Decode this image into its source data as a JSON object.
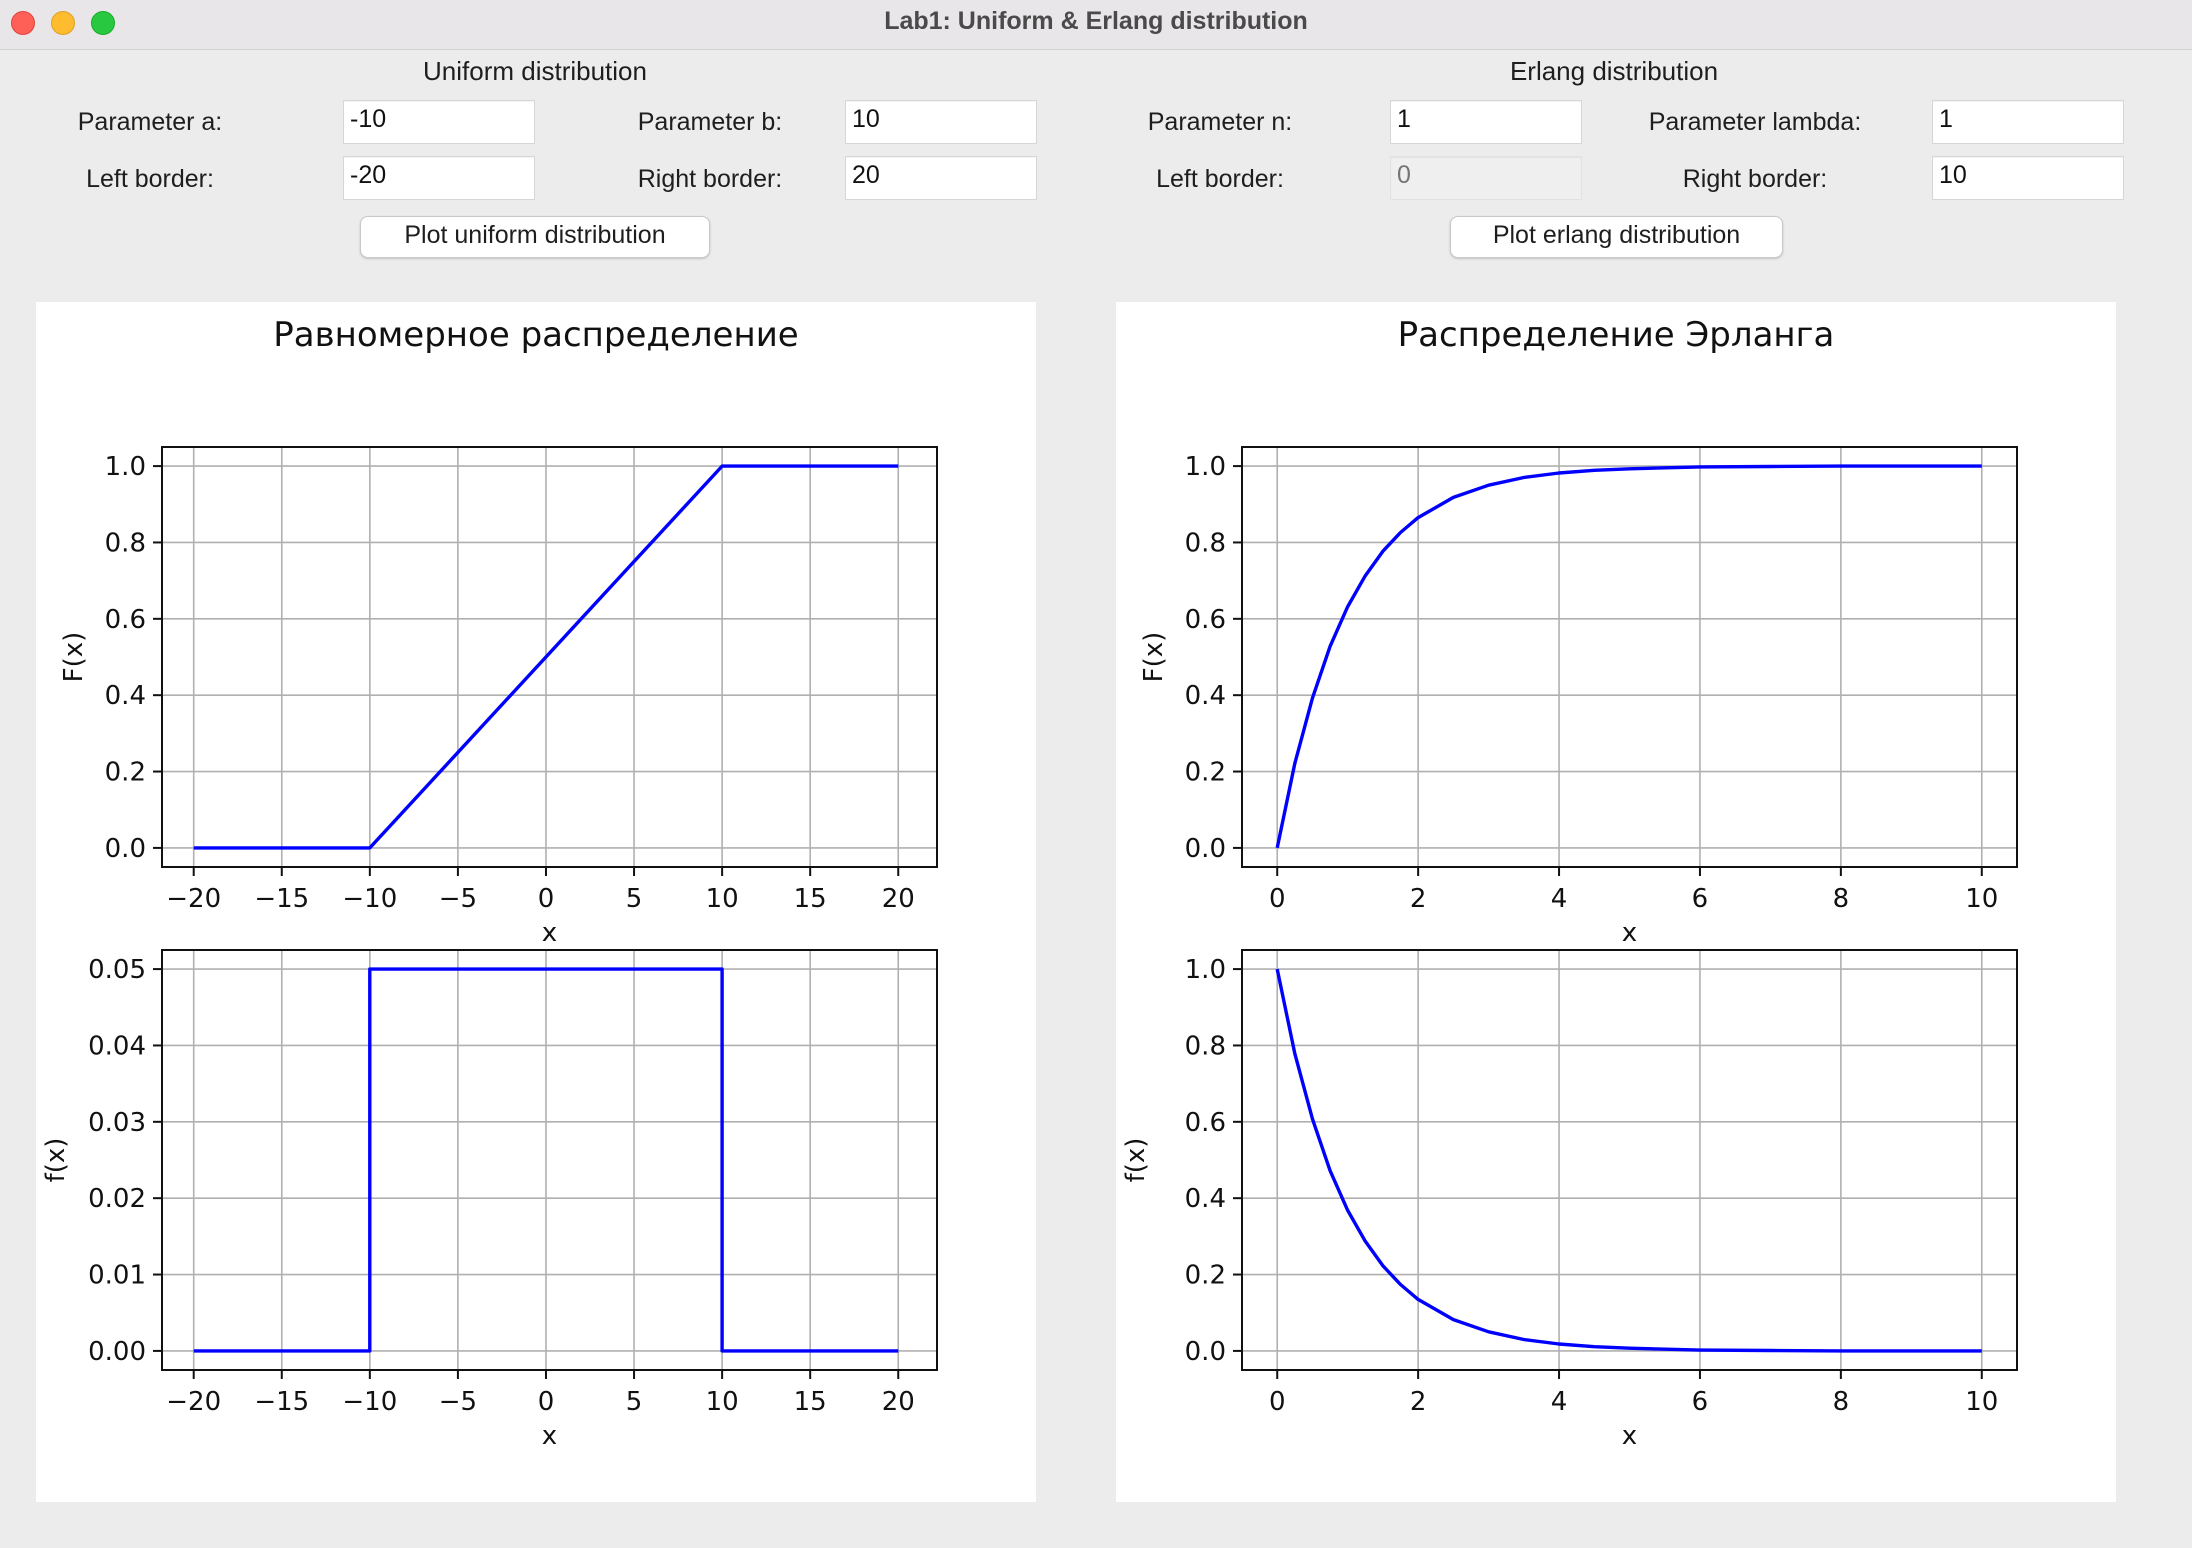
{
  "window": {
    "title": "Lab1: Uniform & Erlang distribution"
  },
  "uniform_panel": {
    "title": "Uniform distribution",
    "param_a_label": "Parameter a:",
    "param_a_value": "-10",
    "param_b_label": "Parameter b:",
    "param_b_value": "10",
    "left_border_label": "Left border:",
    "left_border_value": "-20",
    "right_border_label": "Right border:",
    "right_border_value": "20",
    "plot_button": "Plot uniform distribution"
  },
  "erlang_panel": {
    "title": "Erlang distribution",
    "param_n_label": "Parameter n:",
    "param_n_value": "1",
    "param_lambda_label": "Parameter lambda:",
    "param_lambda_value": "1",
    "left_border_label": "Left border:",
    "left_border_placeholder": "0",
    "right_border_label": "Right border:",
    "right_border_value": "10",
    "plot_button": "Plot erlang distribution"
  },
  "figures": {
    "uniform_title": "Равномерное распределение",
    "erlang_title": "Распределение Эрланга"
  },
  "chart_data": [
    {
      "type": "line",
      "figure": "uniform",
      "panel": "cdf",
      "xlabel": "x",
      "ylabel": "F(x)",
      "xlim": [
        -21.8,
        22.2
      ],
      "ylim": [
        -0.05,
        1.05
      ],
      "xticks": [
        -20,
        -15,
        -10,
        -5,
        0,
        5,
        10,
        15,
        20
      ],
      "xtick_labels": [
        "−20",
        "−15",
        "−10",
        "−5",
        "0",
        "5",
        "10",
        "15",
        "20"
      ],
      "yticks": [
        0,
        0.2,
        0.4,
        0.6,
        0.8,
        1.0
      ],
      "ytick_labels": [
        "0.0",
        "0.2",
        "0.4",
        "0.6",
        "0.8",
        "1.0"
      ],
      "grid": true,
      "color": "#0000ff",
      "x": [
        -20,
        -10,
        10,
        20
      ],
      "y": [
        0,
        0,
        1,
        1
      ]
    },
    {
      "type": "line",
      "figure": "uniform",
      "panel": "pdf",
      "xlabel": "x",
      "ylabel": "f(x)",
      "xlim": [
        -21.8,
        22.2
      ],
      "ylim": [
        -0.0025,
        0.0525
      ],
      "xticks": [
        -20,
        -15,
        -10,
        -5,
        0,
        5,
        10,
        15,
        20
      ],
      "xtick_labels": [
        "−20",
        "−15",
        "−10",
        "−5",
        "0",
        "5",
        "10",
        "15",
        "20"
      ],
      "yticks": [
        0,
        0.01,
        0.02,
        0.03,
        0.04,
        0.05
      ],
      "ytick_labels": [
        "0.00",
        "0.01",
        "0.02",
        "0.03",
        "0.04",
        "0.05"
      ],
      "grid": true,
      "color": "#0000ff",
      "x": [
        -20,
        -10,
        -10,
        10,
        10,
        20
      ],
      "y": [
        0,
        0,
        0.05,
        0.05,
        0,
        0
      ]
    },
    {
      "type": "line",
      "figure": "erlang",
      "panel": "cdf",
      "xlabel": "x",
      "ylabel": "F(x)",
      "xlim": [
        -0.5,
        10.5
      ],
      "ylim": [
        -0.05,
        1.05
      ],
      "xticks": [
        0,
        2,
        4,
        6,
        8,
        10
      ],
      "xtick_labels": [
        "0",
        "2",
        "4",
        "6",
        "8",
        "10"
      ],
      "yticks": [
        0,
        0.2,
        0.4,
        0.6,
        0.8,
        1.0
      ],
      "ytick_labels": [
        "0.0",
        "0.2",
        "0.4",
        "0.6",
        "0.8",
        "1.0"
      ],
      "grid": true,
      "color": "#0000ff",
      "x": [
        0,
        0.25,
        0.5,
        0.75,
        1,
        1.25,
        1.5,
        1.75,
        2,
        2.5,
        3,
        3.5,
        4,
        4.5,
        5,
        6,
        7,
        8,
        9,
        10
      ],
      "y": [
        0,
        0.221,
        0.393,
        0.528,
        0.632,
        0.713,
        0.777,
        0.826,
        0.865,
        0.918,
        0.95,
        0.97,
        0.982,
        0.989,
        0.993,
        0.998,
        0.999,
        1.0,
        1.0,
        1.0
      ]
    },
    {
      "type": "line",
      "figure": "erlang",
      "panel": "pdf",
      "xlabel": "x",
      "ylabel": "f(x)",
      "xlim": [
        -0.5,
        10.5
      ],
      "ylim": [
        -0.05,
        1.05
      ],
      "xticks": [
        0,
        2,
        4,
        6,
        8,
        10
      ],
      "xtick_labels": [
        "0",
        "2",
        "4",
        "6",
        "8",
        "10"
      ],
      "yticks": [
        0,
        0.2,
        0.4,
        0.6,
        0.8,
        1.0
      ],
      "ytick_labels": [
        "0.0",
        "0.2",
        "0.4",
        "0.6",
        "0.8",
        "1.0"
      ],
      "grid": true,
      "color": "#0000ff",
      "x": [
        0,
        0.25,
        0.5,
        0.75,
        1,
        1.25,
        1.5,
        1.75,
        2,
        2.5,
        3,
        3.5,
        4,
        4.5,
        5,
        6,
        7,
        8,
        9,
        10
      ],
      "y": [
        1,
        0.779,
        0.607,
        0.472,
        0.368,
        0.287,
        0.223,
        0.174,
        0.135,
        0.082,
        0.05,
        0.03,
        0.018,
        0.011,
        0.007,
        0.002,
        0.001,
        0.0,
        0.0,
        0.0
      ]
    }
  ]
}
